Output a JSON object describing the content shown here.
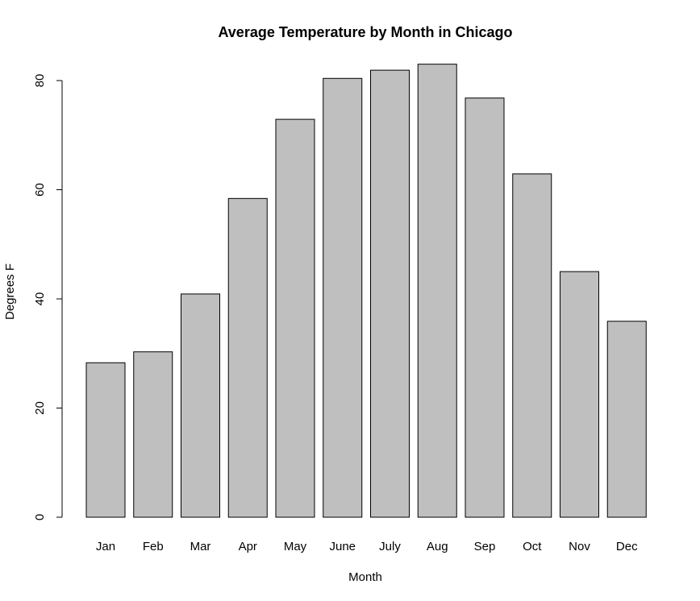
{
  "chart_data": {
    "type": "bar",
    "title": "Average Temperature by Month in Chicago",
    "xlabel": "Month",
    "ylabel": "Degrees F",
    "categories": [
      "Jan",
      "Feb",
      "Mar",
      "Apr",
      "May",
      "June",
      "July",
      "Aug",
      "Sep",
      "Oct",
      "Nov",
      "Dec"
    ],
    "values": [
      28.3,
      30.3,
      40.9,
      58.4,
      72.9,
      80.4,
      81.9,
      83.0,
      76.8,
      62.9,
      45.0,
      35.9
    ],
    "ylim": [
      0,
      80
    ],
    "yticks": [
      0,
      20,
      40,
      60,
      80
    ],
    "bar_color": "#bfbfbf",
    "grid": false
  }
}
